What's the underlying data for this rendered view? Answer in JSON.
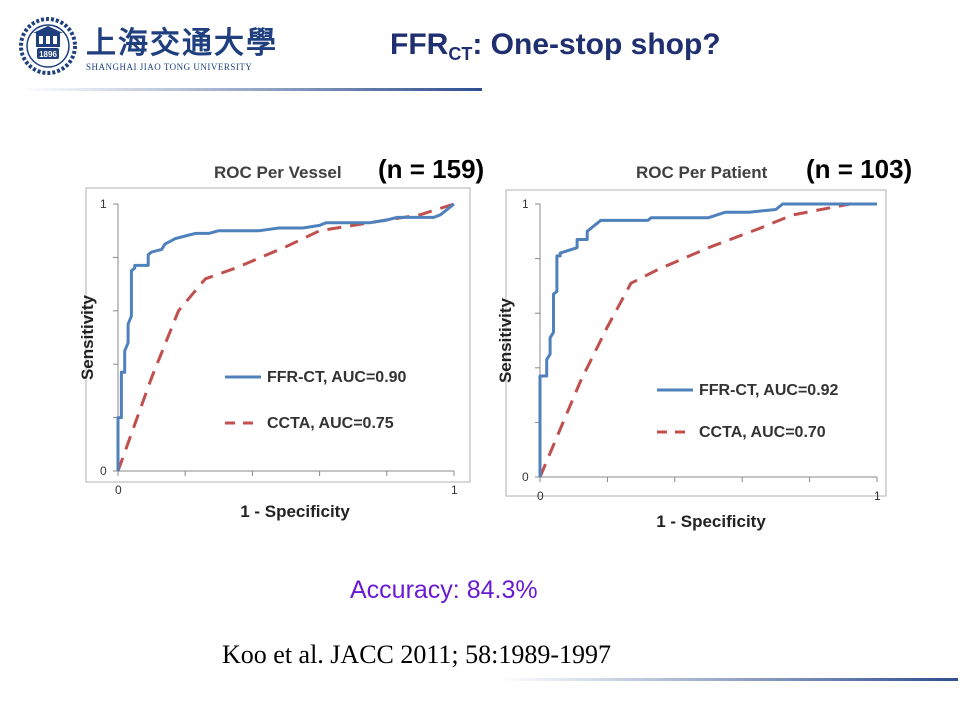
{
  "logo": {
    "chinese": "上海交通大學",
    "english": "SHANGHAI JIAO TONG UNIVERSITY",
    "seal_text": "1896"
  },
  "slide": {
    "title_main": "FFR",
    "title_sub": "CT",
    "title_rest": ": One-stop shop?",
    "accuracy": "Accuracy: 84.3%",
    "citation": "Koo et al. JACC 2011; 58:1989-1997"
  },
  "colors": {
    "title": "#1f2f6f",
    "rule_blue": "#2f4f8f",
    "accuracy": "#6a1ad6",
    "ffrct_line": "#4f81bd",
    "ccta_line": "#c0504d"
  },
  "chart_data": [
    {
      "type": "line",
      "title": "ROC Per Vessel",
      "title_n": "(n = 159)",
      "xlabel": "1 - Specificity",
      "ylabel": "Sensitivity",
      "xlim": [
        0,
        1
      ],
      "ylim": [
        0,
        1
      ],
      "x_ticks": [
        "0",
        "1"
      ],
      "y_ticks": [
        "0",
        "1"
      ],
      "legend_position": "lower-right",
      "series": [
        {
          "name": "FFR-CT, AUC=0.90",
          "style": "solid",
          "color": "#4f81bd",
          "points": [
            [
              0,
              0
            ],
            [
              0,
              0.2
            ],
            [
              0.01,
              0.2
            ],
            [
              0.01,
              0.37
            ],
            [
              0.02,
              0.37
            ],
            [
              0.02,
              0.45
            ],
            [
              0.03,
              0.48
            ],
            [
              0.03,
              0.55
            ],
            [
              0.04,
              0.58
            ],
            [
              0.04,
              0.75
            ],
            [
              0.05,
              0.76
            ],
            [
              0.05,
              0.77
            ],
            [
              0.09,
              0.77
            ],
            [
              0.09,
              0.81
            ],
            [
              0.1,
              0.82
            ],
            [
              0.13,
              0.83
            ],
            [
              0.14,
              0.85
            ],
            [
              0.17,
              0.87
            ],
            [
              0.2,
              0.88
            ],
            [
              0.23,
              0.89
            ],
            [
              0.27,
              0.89
            ],
            [
              0.3,
              0.9
            ],
            [
              0.42,
              0.9
            ],
            [
              0.48,
              0.91
            ],
            [
              0.55,
              0.91
            ],
            [
              0.6,
              0.92
            ],
            [
              0.62,
              0.93
            ],
            [
              0.75,
              0.93
            ],
            [
              0.8,
              0.94
            ],
            [
              0.83,
              0.95
            ],
            [
              0.94,
              0.95
            ],
            [
              0.96,
              0.96
            ],
            [
              0.98,
              0.98
            ],
            [
              1,
              1
            ]
          ]
        },
        {
          "name": "CCTA, AUC=0.75",
          "style": "dashed",
          "color": "#c0504d",
          "points": [
            [
              0,
              0
            ],
            [
              0.1,
              0.35
            ],
            [
              0.18,
              0.6
            ],
            [
              0.26,
              0.72
            ],
            [
              0.35,
              0.76
            ],
            [
              0.5,
              0.84
            ],
            [
              0.6,
              0.9
            ],
            [
              0.7,
              0.92
            ],
            [
              0.8,
              0.94
            ],
            [
              0.9,
              0.96
            ],
            [
              1,
              1
            ]
          ]
        }
      ]
    },
    {
      "type": "line",
      "title": "ROC Per Patient",
      "title_n": "(n = 103)",
      "xlabel": "1 - Specificity",
      "ylabel": "Sensitivity",
      "xlim": [
        0,
        1
      ],
      "ylim": [
        0,
        1
      ],
      "x_ticks": [
        "0",
        "1"
      ],
      "y_ticks": [
        "0",
        "1"
      ],
      "legend_position": "lower-right",
      "series": [
        {
          "name": "FFR-CT, AUC=0.92",
          "style": "solid",
          "color": "#4f81bd",
          "points": [
            [
              0,
              0
            ],
            [
              0,
              0.37
            ],
            [
              0.02,
              0.37
            ],
            [
              0.02,
              0.43
            ],
            [
              0.03,
              0.45
            ],
            [
              0.03,
              0.51
            ],
            [
              0.04,
              0.53
            ],
            [
              0.04,
              0.67
            ],
            [
              0.05,
              0.68
            ],
            [
              0.05,
              0.81
            ],
            [
              0.06,
              0.81
            ],
            [
              0.06,
              0.82
            ],
            [
              0.11,
              0.84
            ],
            [
              0.11,
              0.87
            ],
            [
              0.14,
              0.87
            ],
            [
              0.14,
              0.9
            ],
            [
              0.18,
              0.94
            ],
            [
              0.32,
              0.94
            ],
            [
              0.33,
              0.95
            ],
            [
              0.5,
              0.95
            ],
            [
              0.55,
              0.97
            ],
            [
              0.62,
              0.97
            ],
            [
              0.7,
              0.98
            ],
            [
              0.72,
              1
            ],
            [
              1,
              1
            ]
          ]
        },
        {
          "name": "CCTA, AUC=0.70",
          "style": "dashed",
          "color": "#c0504d",
          "points": [
            [
              0,
              0
            ],
            [
              0.12,
              0.35
            ],
            [
              0.2,
              0.55
            ],
            [
              0.27,
              0.71
            ],
            [
              0.35,
              0.76
            ],
            [
              0.5,
              0.84
            ],
            [
              0.65,
              0.91
            ],
            [
              0.75,
              0.96
            ],
            [
              0.92,
              1
            ],
            [
              1,
              1
            ]
          ]
        }
      ]
    }
  ]
}
